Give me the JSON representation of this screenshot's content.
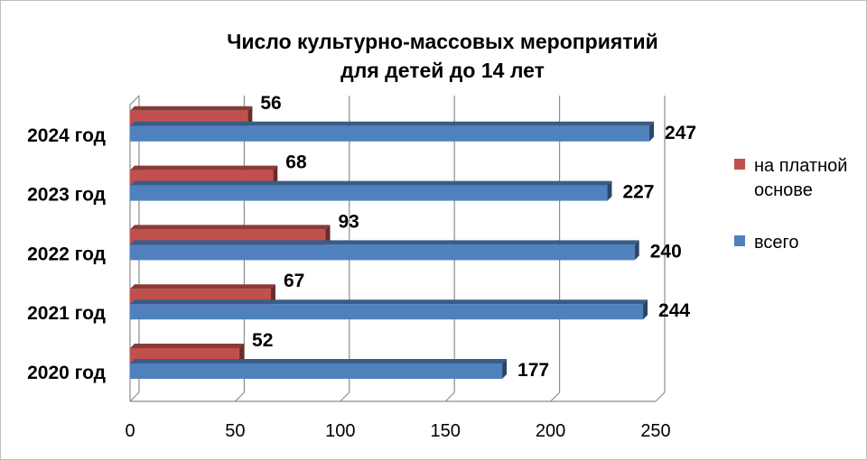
{
  "chart_data": {
    "type": "bar",
    "orientation": "horizontal",
    "title_lines": [
      "Число культурно-массовых мероприятий",
      "для детей до 14 лет"
    ],
    "categories": [
      "2020 год",
      "2021 год",
      "2022 год",
      "2023 год",
      "2024 год"
    ],
    "series": [
      {
        "name": "на платной основе",
        "values": [
          52,
          67,
          93,
          68,
          56
        ],
        "color": "#c0504d"
      },
      {
        "name": "всего",
        "values": [
          177,
          244,
          240,
          227,
          247
        ],
        "color": "#4f81bd"
      }
    ],
    "xlim": [
      0,
      250
    ],
    "x_ticks": [
      0,
      50,
      100,
      150,
      200,
      250
    ],
    "legend_position": "right",
    "grid": true
  }
}
